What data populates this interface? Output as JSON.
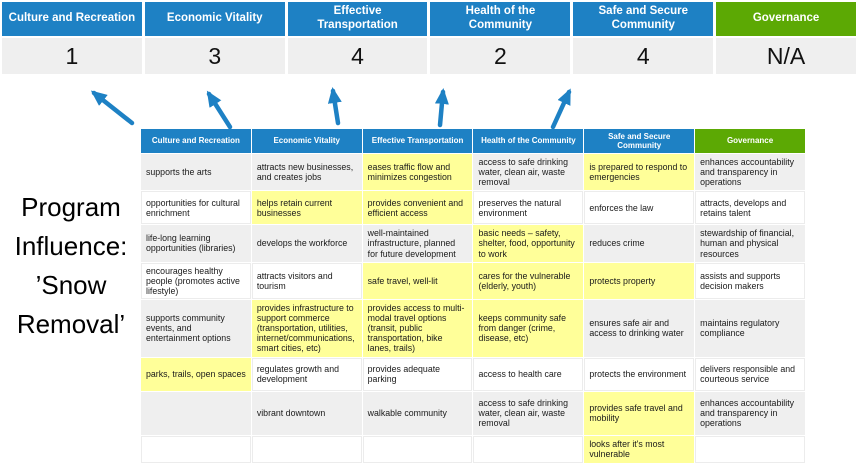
{
  "title": {
    "text_top": "Program Influence:",
    "text_bottom": "’Snow Removal’"
  },
  "colors": {
    "header_blue": "#1E81C4",
    "header_green": "#5CA904",
    "highlight_yellow": "#FFFF99",
    "row_gray": "#EFEFEF",
    "score_bg": "#EFEFEF",
    "arrow_blue": "#1E81C4"
  },
  "scoreboard": {
    "columns": [
      {
        "label": "Culture and Recreation",
        "score": "1",
        "theme": "blue"
      },
      {
        "label": "Economic Vitality",
        "score": "3",
        "theme": "blue"
      },
      {
        "label": "Effective Transportation",
        "score": "4",
        "theme": "blue"
      },
      {
        "label": "Health of the Community",
        "score": "2",
        "theme": "blue"
      },
      {
        "label": "Safe and Secure Community",
        "score": "4",
        "theme": "blue"
      },
      {
        "label": "Governance",
        "score": "N/A",
        "theme": "green"
      }
    ]
  },
  "matrix": {
    "headers": [
      {
        "label": "Culture and Recreation",
        "theme": "blue"
      },
      {
        "label": "Economic Vitality",
        "theme": "blue"
      },
      {
        "label": "Effective Transportation",
        "theme": "blue"
      },
      {
        "label": "Health of the Community",
        "theme": "blue"
      },
      {
        "label": "Safe and Secure Community",
        "theme": "blue"
      },
      {
        "label": "Governance",
        "theme": "green"
      }
    ],
    "rows": [
      {
        "cells": [
          {
            "text": "supports the arts",
            "hl": false
          },
          {
            "text": "attracts new businesses, and creates jobs",
            "hl": false
          },
          {
            "text": "eases traffic flow and minimizes congestion",
            "hl": true
          },
          {
            "text": "access to safe drinking water, clean air, waste removal",
            "hl": false
          },
          {
            "text": "is prepared to respond to emergencies",
            "hl": true
          },
          {
            "text": "enhances accountability and transparency in operations",
            "hl": false
          }
        ]
      },
      {
        "cells": [
          {
            "text": "opportunities for cultural enrichment",
            "hl": false
          },
          {
            "text": "helps retain current businesses",
            "hl": true
          },
          {
            "text": "provides convenient and efficient access",
            "hl": true
          },
          {
            "text": "preserves the natural environment",
            "hl": false
          },
          {
            "text": "enforces the law",
            "hl": false
          },
          {
            "text": "attracts, develops and retains talent",
            "hl": false
          }
        ]
      },
      {
        "cells": [
          {
            "text": "life-long learning opportunities (libraries)",
            "hl": false
          },
          {
            "text": "develops the workforce",
            "hl": false
          },
          {
            "text": "well-maintained infrastructure, planned for future development",
            "hl": false
          },
          {
            "text": "basic needs – safety, shelter, food, opportunity to work",
            "hl": true
          },
          {
            "text": "reduces crime",
            "hl": false
          },
          {
            "text": "stewardship of financial, human and physical resources",
            "hl": false
          }
        ]
      },
      {
        "cells": [
          {
            "text": "encourages healthy people (promotes active lifestyle)",
            "hl": false
          },
          {
            "text": "attracts visitors and tourism",
            "hl": false
          },
          {
            "text": "safe travel, well-lit",
            "hl": true
          },
          {
            "text": "cares for the vulnerable (elderly, youth)",
            "hl": true
          },
          {
            "text": "protects property",
            "hl": true
          },
          {
            "text": "assists and supports decision makers",
            "hl": false
          }
        ]
      },
      {
        "cells": [
          {
            "text": "supports community events, and entertainment options",
            "hl": false
          },
          {
            "text": "provides infrastructure to support commerce (transportation, utilities, internet/communications, smart cities, etc)",
            "hl": true
          },
          {
            "text": "provides access to multi-modal travel options (transit, public transportation, bike lanes, trails)",
            "hl": true
          },
          {
            "text": "keeps community safe from danger (crime, disease, etc)",
            "hl": true
          },
          {
            "text": "ensures safe air and access to drinking water",
            "hl": false
          },
          {
            "text": "maintains regulatory compliance",
            "hl": false
          }
        ]
      },
      {
        "cells": [
          {
            "text": "parks, trails, open spaces",
            "hl": true
          },
          {
            "text": "regulates growth and development",
            "hl": false
          },
          {
            "text": "provides adequate parking",
            "hl": false
          },
          {
            "text": "access to health care",
            "hl": false
          },
          {
            "text": "protects the environment",
            "hl": false
          },
          {
            "text": "delivers responsible and courteous service",
            "hl": false
          }
        ]
      },
      {
        "cells": [
          {
            "text": "",
            "hl": false
          },
          {
            "text": "vibrant downtown",
            "hl": false
          },
          {
            "text": "walkable community",
            "hl": false
          },
          {
            "text": "access to safe drinking water, clean air, waste removal",
            "hl": false
          },
          {
            "text": "provides safe travel and mobility",
            "hl": true
          },
          {
            "text": "enhances accountability and transparency in operations",
            "hl": false
          }
        ]
      },
      {
        "cells": [
          {
            "text": "",
            "hl": false
          },
          {
            "text": "",
            "hl": false
          },
          {
            "text": "",
            "hl": false
          },
          {
            "text": "",
            "hl": false
          },
          {
            "text": "looks after it's most vulnerable",
            "hl": true
          },
          {
            "text": "",
            "hl": false
          }
        ]
      }
    ]
  },
  "arrows": {
    "count": 5,
    "color": "#1E81C4"
  }
}
